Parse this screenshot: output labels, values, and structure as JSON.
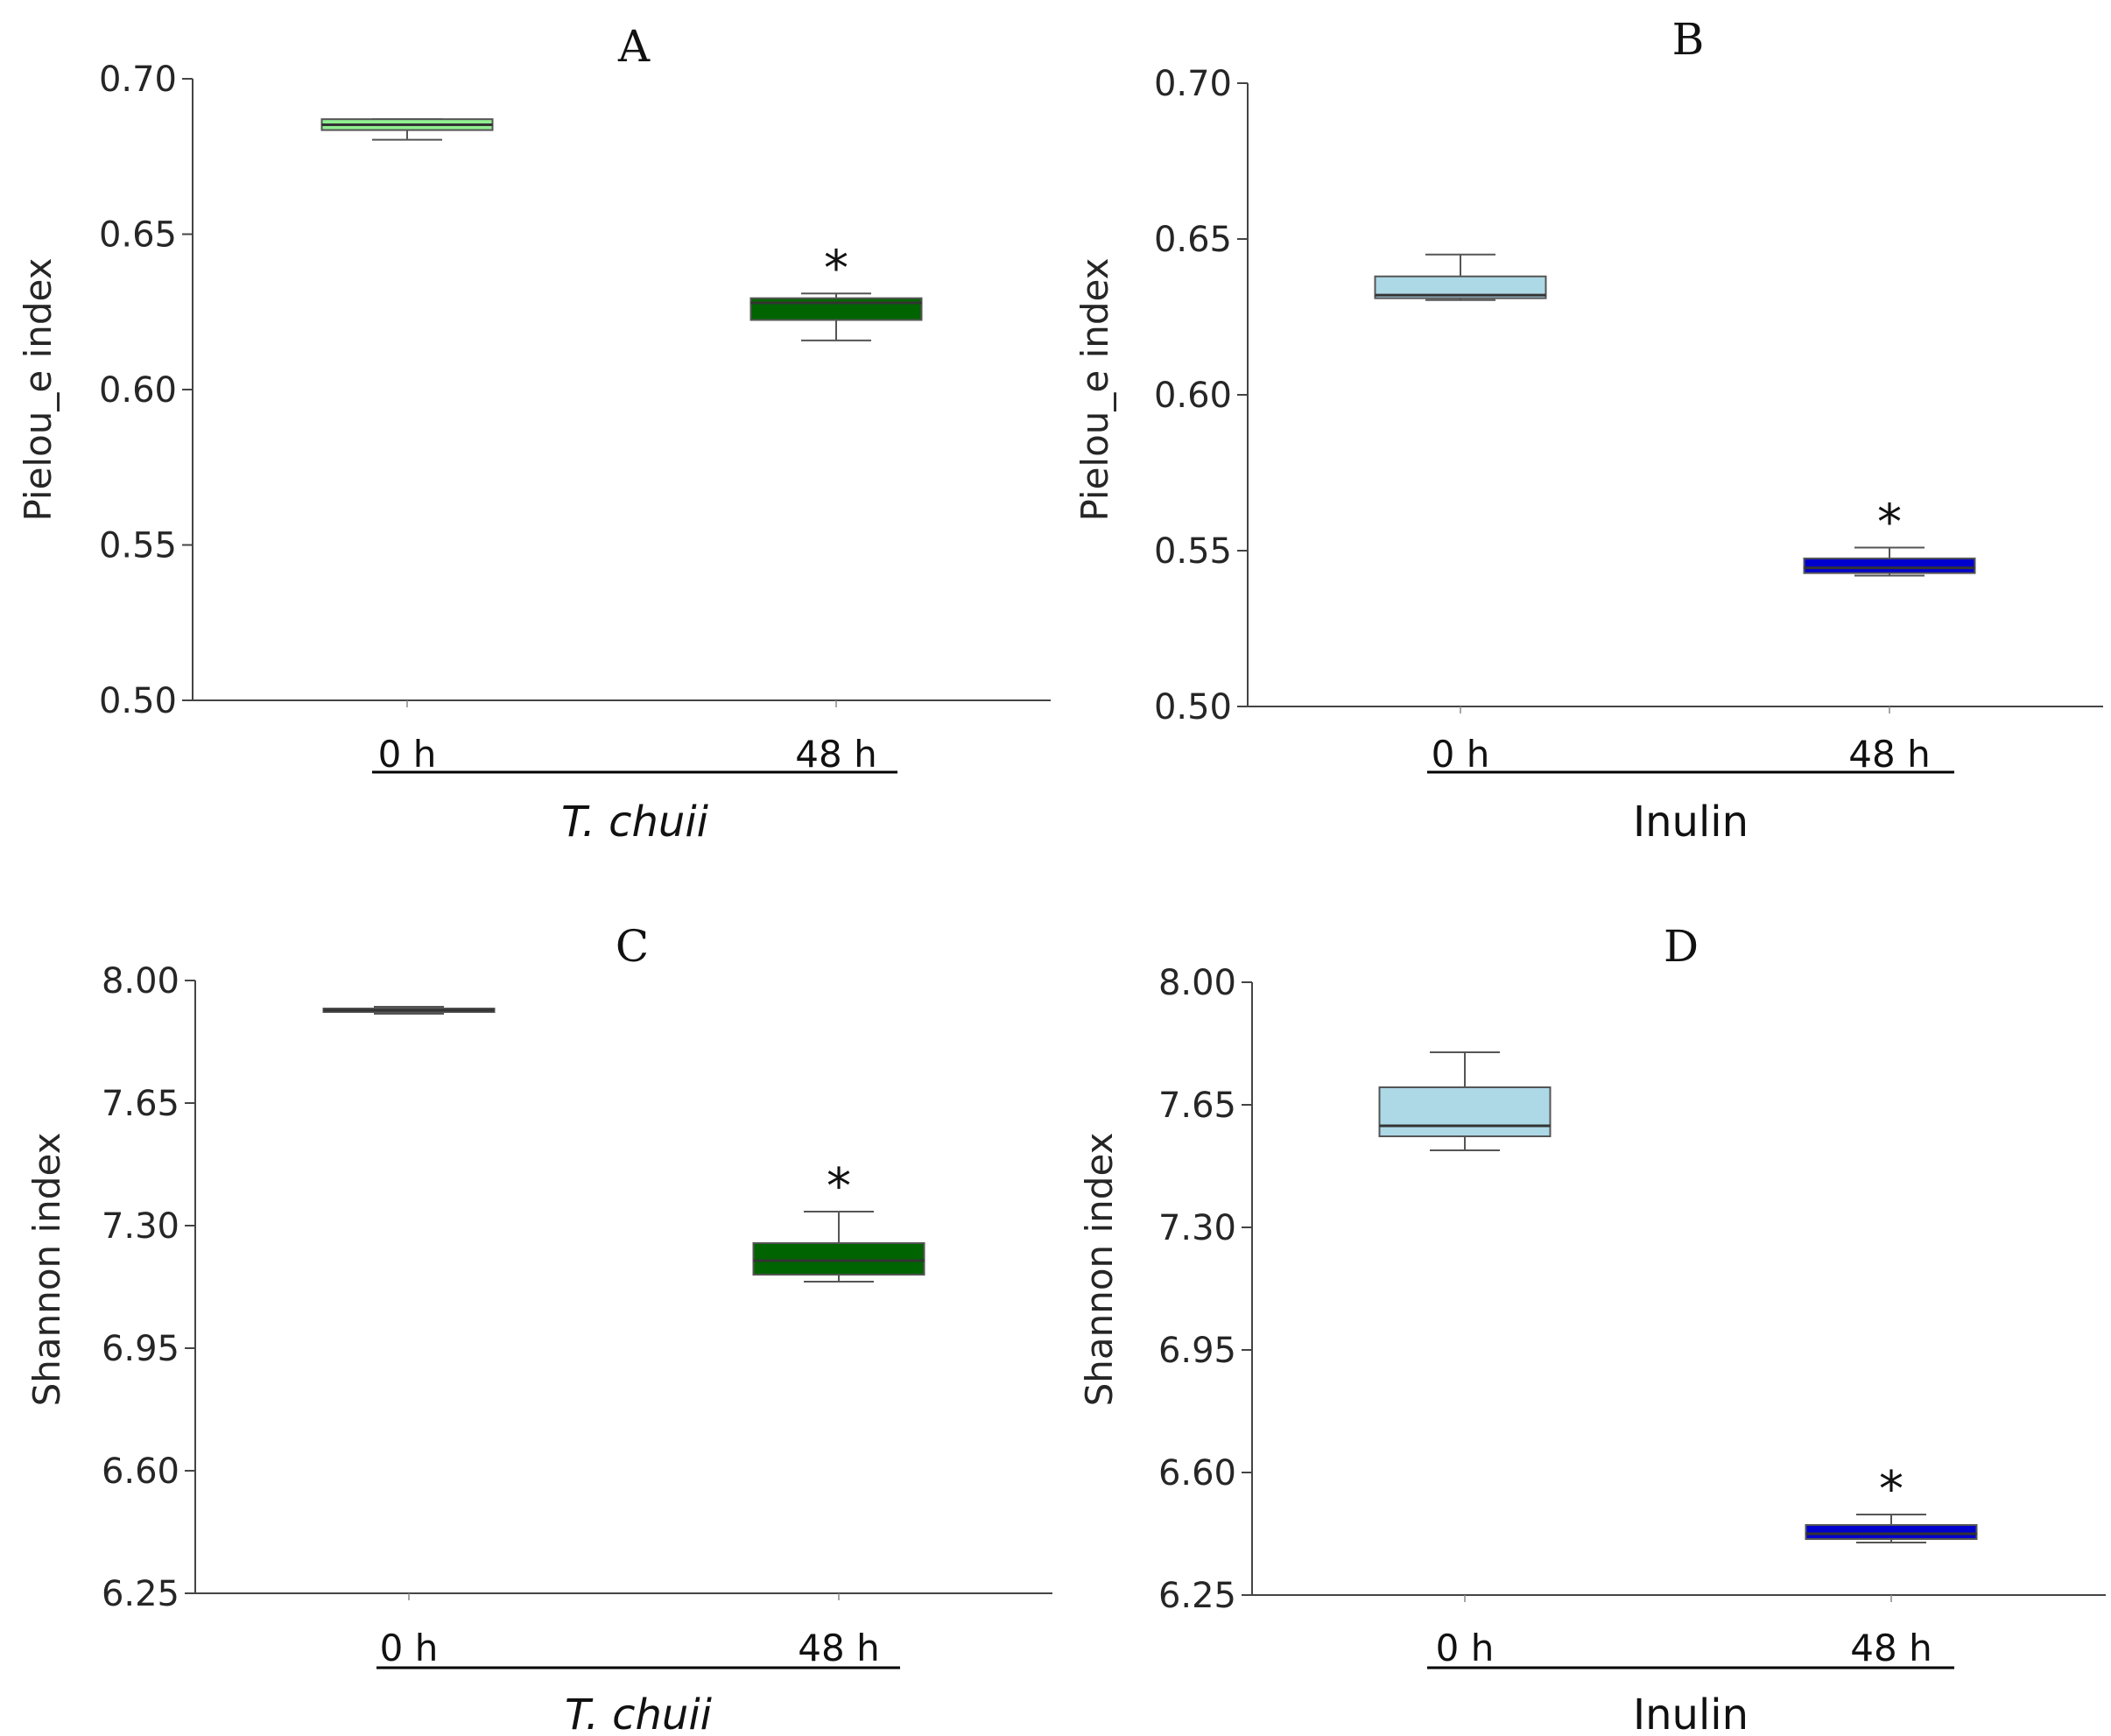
{
  "chart_data": [
    {
      "panel": "A",
      "type": "box",
      "title": "A",
      "ylabel": "Pielou_e index",
      "ylim": [
        0.5,
        0.7
      ],
      "yticks": [
        "0.50",
        "0.55",
        "0.60",
        "0.65",
        "0.70"
      ],
      "categories": [
        "0 h",
        "48 h"
      ],
      "group_label": "T. chuii",
      "group_italic": true,
      "boxes": [
        {
          "category": "0 h",
          "whisker_low": 0.6804,
          "q1": 0.6835,
          "median": 0.6852,
          "q3": 0.687,
          "whisker_high": 0.687,
          "color": "#90ee90",
          "significant": false
        },
        {
          "category": "48 h",
          "whisker_low": 0.6158,
          "q1": 0.6224,
          "median": 0.6279,
          "q3": 0.6294,
          "whisker_high": 0.6309,
          "color": "#006400",
          "significant": true
        }
      ],
      "significance_marker": "*"
    },
    {
      "panel": "B",
      "type": "box",
      "title": "B",
      "ylabel": "Pielou_e index",
      "ylim": [
        0.5,
        0.7
      ],
      "yticks": [
        "0.50",
        "0.55",
        "0.60",
        "0.65",
        "0.70"
      ],
      "categories": [
        "0 h",
        "48 h"
      ],
      "group_label": "Inulin",
      "group_italic": false,
      "boxes": [
        {
          "category": "0 h",
          "whisker_low": 0.6304,
          "q1": 0.631,
          "median": 0.632,
          "q3": 0.638,
          "whisker_high": 0.645,
          "color": "#add8e6",
          "significant": false
        },
        {
          "category": "48 h",
          "whisker_low": 0.542,
          "q1": 0.5428,
          "median": 0.5445,
          "q3": 0.5475,
          "whisker_high": 0.551,
          "color": "#0000cd",
          "significant": true
        }
      ],
      "significance_marker": "*"
    },
    {
      "panel": "C",
      "type": "box",
      "title": "C",
      "ylabel": "Shannon index",
      "ylim": [
        6.25,
        8.0
      ],
      "yticks": [
        "6.25",
        "6.60",
        "6.95",
        "7.30",
        "7.65",
        "8.00"
      ],
      "categories": [
        "0 h",
        "48 h"
      ],
      "group_label": "T. chuii",
      "group_italic": true,
      "boxes": [
        {
          "category": "0 h",
          "whisker_low": 7.905,
          "q1": 7.91,
          "median": 7.915,
          "q3": 7.92,
          "whisker_high": 7.925,
          "color": "#2f4f2f",
          "significant": false
        },
        {
          "category": "48 h",
          "whisker_low": 7.14,
          "q1": 7.16,
          "median": 7.2,
          "q3": 7.25,
          "whisker_high": 7.34,
          "color": "#006400",
          "significant": true
        }
      ],
      "significance_marker": "*"
    },
    {
      "panel": "D",
      "type": "box",
      "title": "D",
      "ylabel": "Shannon index",
      "ylim": [
        6.25,
        8.0
      ],
      "yticks": [
        "6.25",
        "6.60",
        "6.95",
        "7.30",
        "7.65",
        "8.00"
      ],
      "categories": [
        "0 h",
        "48 h"
      ],
      "group_label": "Inulin",
      "group_italic": false,
      "boxes": [
        {
          "category": "0 h",
          "whisker_low": 7.52,
          "q1": 7.56,
          "median": 7.59,
          "q3": 7.7,
          "whisker_high": 7.8,
          "color": "#add8e6",
          "significant": false
        },
        {
          "category": "48 h",
          "whisker_low": 6.4,
          "q1": 6.41,
          "median": 6.425,
          "q3": 6.45,
          "whisker_high": 6.48,
          "color": "#0000cd",
          "significant": true
        }
      ],
      "significance_marker": "*"
    }
  ]
}
